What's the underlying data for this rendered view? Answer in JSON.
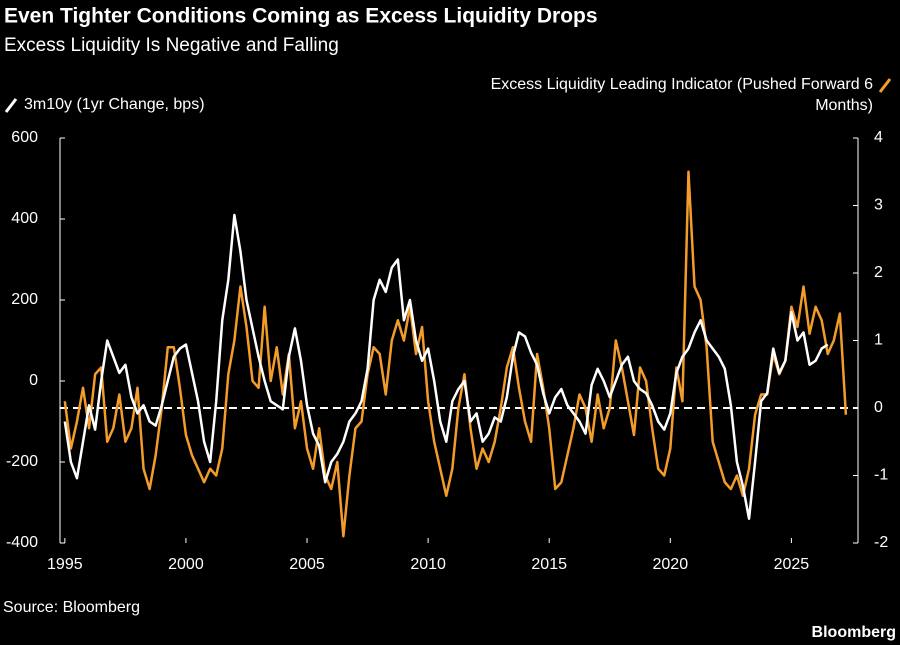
{
  "chart_data": {
    "type": "line",
    "title": "Even Tighter Conditions Coming as Excess Liquidity Drops",
    "subtitle": "Excess Liquidity Is Negative and Falling",
    "source": "Source: Bloomberg",
    "brand": "Bloomberg",
    "xlim": [
      1994.8,
      2027.75
    ],
    "xticks": [
      1995,
      2000,
      2005,
      2010,
      2015,
      2020,
      2025
    ],
    "ylim": [
      -400,
      600
    ],
    "yticks": [
      -400,
      -200,
      0,
      200,
      400,
      600
    ],
    "y2lim": [
      -2,
      4
    ],
    "y2ticks": [
      -2,
      -1,
      0,
      1,
      2,
      3,
      4
    ],
    "y2_zero_line": true,
    "series": [
      {
        "name": "3m10y (1yr Change, bps)",
        "color": "#ffffff",
        "axis": "y",
        "x": [
          1995.0,
          1995.25,
          1995.5,
          1995.75,
          1996.0,
          1996.25,
          1996.5,
          1996.75,
          1997.0,
          1997.25,
          1997.5,
          1997.75,
          1998.0,
          1998.25,
          1998.5,
          1998.75,
          1999.0,
          1999.25,
          1999.5,
          1999.75,
          2000.0,
          2000.25,
          2000.5,
          2000.75,
          2001.0,
          2001.25,
          2001.5,
          2001.75,
          2002.0,
          2002.25,
          2002.5,
          2002.75,
          2003.0,
          2003.25,
          2003.5,
          2003.75,
          2004.0,
          2004.25,
          2004.5,
          2004.75,
          2005.0,
          2005.25,
          2005.5,
          2005.75,
          2006.0,
          2006.25,
          2006.5,
          2006.75,
          2007.0,
          2007.25,
          2007.5,
          2007.75,
          2008.0,
          2008.25,
          2008.5,
          2008.75,
          2009.0,
          2009.25,
          2009.5,
          2009.75,
          2010.0,
          2010.25,
          2010.5,
          2010.75,
          2011.0,
          2011.25,
          2011.5,
          2011.75,
          2012.0,
          2012.25,
          2012.5,
          2012.75,
          2013.0,
          2013.25,
          2013.5,
          2013.75,
          2014.0,
          2014.25,
          2014.5,
          2014.75,
          2015.0,
          2015.25,
          2015.5,
          2015.75,
          2016.0,
          2016.25,
          2016.5,
          2016.75,
          2017.0,
          2017.25,
          2017.5,
          2017.75,
          2018.0,
          2018.25,
          2018.5,
          2018.75,
          2019.0,
          2019.25,
          2019.5,
          2019.75,
          2020.0,
          2020.25,
          2020.5,
          2020.75,
          2021.0,
          2021.25,
          2021.5,
          2021.75,
          2022.0,
          2022.25,
          2022.5,
          2022.75,
          2023.0,
          2023.25,
          2023.5,
          2023.75,
          2024.0,
          2024.25,
          2024.5,
          2024.75,
          2025.0,
          2025.25,
          2025.5,
          2025.75,
          2026.0,
          2026.25,
          2026.5
        ],
        "values": [
          -100,
          -200,
          -240,
          -150,
          -60,
          -120,
          0,
          100,
          60,
          20,
          40,
          -40,
          -80,
          -60,
          -100,
          -110,
          -60,
          0,
          60,
          80,
          90,
          20,
          -50,
          -150,
          -200,
          -50,
          150,
          250,
          410,
          320,
          200,
          130,
          60,
          0,
          -50,
          -60,
          -70,
          60,
          130,
          50,
          -60,
          -130,
          -160,
          -250,
          -200,
          -180,
          -150,
          -100,
          -80,
          -50,
          30,
          200,
          250,
          220,
          280,
          300,
          150,
          200,
          100,
          50,
          80,
          0,
          -100,
          -150,
          -50,
          -20,
          0,
          -100,
          -80,
          -150,
          -130,
          -90,
          -100,
          -40,
          60,
          120,
          110,
          70,
          40,
          -30,
          -80,
          -40,
          -20,
          -60,
          -80,
          -100,
          -130,
          -10,
          30,
          0,
          -40,
          0,
          40,
          60,
          0,
          -20,
          -30,
          -60,
          -100,
          -120,
          -80,
          20,
          60,
          80,
          120,
          150,
          100,
          80,
          60,
          30,
          -60,
          -200,
          -260,
          -340,
          -200,
          -50,
          -30,
          80,
          20,
          50,
          170,
          100,
          120,
          40,
          50,
          80,
          90
        ]
      },
      {
        "name": "Excess Liquidity Leading Indicator (Pushed Forward 6 Months)",
        "color": "#f39c2b",
        "axis": "y2",
        "x": [
          1995.0,
          1995.25,
          1995.5,
          1995.75,
          1996.0,
          1996.25,
          1996.5,
          1996.75,
          1997.0,
          1997.25,
          1997.5,
          1997.75,
          1998.0,
          1998.25,
          1998.5,
          1998.75,
          1999.0,
          1999.25,
          1999.5,
          1999.75,
          2000.0,
          2000.25,
          2000.5,
          2000.75,
          2001.0,
          2001.25,
          2001.5,
          2001.75,
          2002.0,
          2002.25,
          2002.5,
          2002.75,
          2003.0,
          2003.25,
          2003.5,
          2003.75,
          2004.0,
          2004.25,
          2004.5,
          2004.75,
          2005.0,
          2005.25,
          2005.5,
          2005.75,
          2006.0,
          2006.25,
          2006.5,
          2006.75,
          2007.0,
          2007.25,
          2007.5,
          2007.75,
          2008.0,
          2008.25,
          2008.5,
          2008.75,
          2009.0,
          2009.25,
          2009.5,
          2009.75,
          2010.0,
          2010.25,
          2010.5,
          2010.75,
          2011.0,
          2011.25,
          2011.5,
          2011.75,
          2012.0,
          2012.25,
          2012.5,
          2012.75,
          2013.0,
          2013.25,
          2013.5,
          2013.75,
          2014.0,
          2014.25,
          2014.5,
          2014.75,
          2015.0,
          2015.25,
          2015.5,
          2015.75,
          2016.0,
          2016.25,
          2016.5,
          2016.75,
          2017.0,
          2017.25,
          2017.5,
          2017.75,
          2018.0,
          2018.25,
          2018.5,
          2018.75,
          2019.0,
          2019.25,
          2019.5,
          2019.75,
          2020.0,
          2020.25,
          2020.5,
          2020.75,
          2021.0,
          2021.25,
          2021.5,
          2021.75,
          2022.0,
          2022.25,
          2022.5,
          2022.75,
          2023.0,
          2023.25,
          2023.5,
          2023.75,
          2024.0,
          2024.25,
          2024.5,
          2024.75,
          2025.0,
          2025.25,
          2025.5,
          2025.75,
          2026.0,
          2026.25,
          2026.5,
          2026.75,
          2027.0,
          2027.25
        ],
        "values": [
          0.1,
          -0.6,
          -0.2,
          0.3,
          -0.3,
          0.5,
          0.6,
          -0.5,
          -0.3,
          0.2,
          -0.5,
          -0.3,
          0.3,
          -0.9,
          -1.2,
          -0.7,
          0,
          0.9,
          0.9,
          0.3,
          -0.4,
          -0.7,
          -0.9,
          -1.1,
          -0.9,
          -1.0,
          -0.6,
          0.5,
          1.0,
          1.8,
          1.2,
          0.4,
          0.3,
          1.5,
          0.4,
          0.9,
          0.2,
          0.8,
          -0.3,
          0.1,
          -0.6,
          -0.9,
          -0.3,
          -1.0,
          -1.2,
          -0.8,
          -1.9,
          -1.0,
          -0.3,
          -0.2,
          0.5,
          0.9,
          0.8,
          0.2,
          1.0,
          1.3,
          1.0,
          1.5,
          0.8,
          1.2,
          0.1,
          -0.5,
          -0.9,
          -1.3,
          -0.9,
          0,
          0.5,
          -0.3,
          -0.9,
          -0.6,
          -0.8,
          -0.5,
          0,
          0.6,
          0.9,
          0.3,
          -0.2,
          -0.5,
          0.8,
          0.3,
          -0.3,
          -1.2,
          -1.1,
          -0.7,
          -0.3,
          0.2,
          0.0,
          -0.5,
          0.2,
          -0.3,
          0,
          1.0,
          0.6,
          0.1,
          -0.4,
          0.6,
          0.4,
          -0.3,
          -0.9,
          -1.0,
          -0.6,
          0.6,
          0.1,
          3.5,
          1.8,
          1.6,
          0.9,
          -0.5,
          -0.8,
          -1.1,
          -1.2,
          -1.0,
          -1.3,
          -0.9,
          -0.1,
          0.2,
          0.2,
          0.8,
          0.5,
          0.7,
          1.5,
          1.2,
          1.8,
          1.1,
          1.5,
          1.3,
          0.8,
          1.0,
          1.4,
          -0.1
        ]
      }
    ]
  }
}
